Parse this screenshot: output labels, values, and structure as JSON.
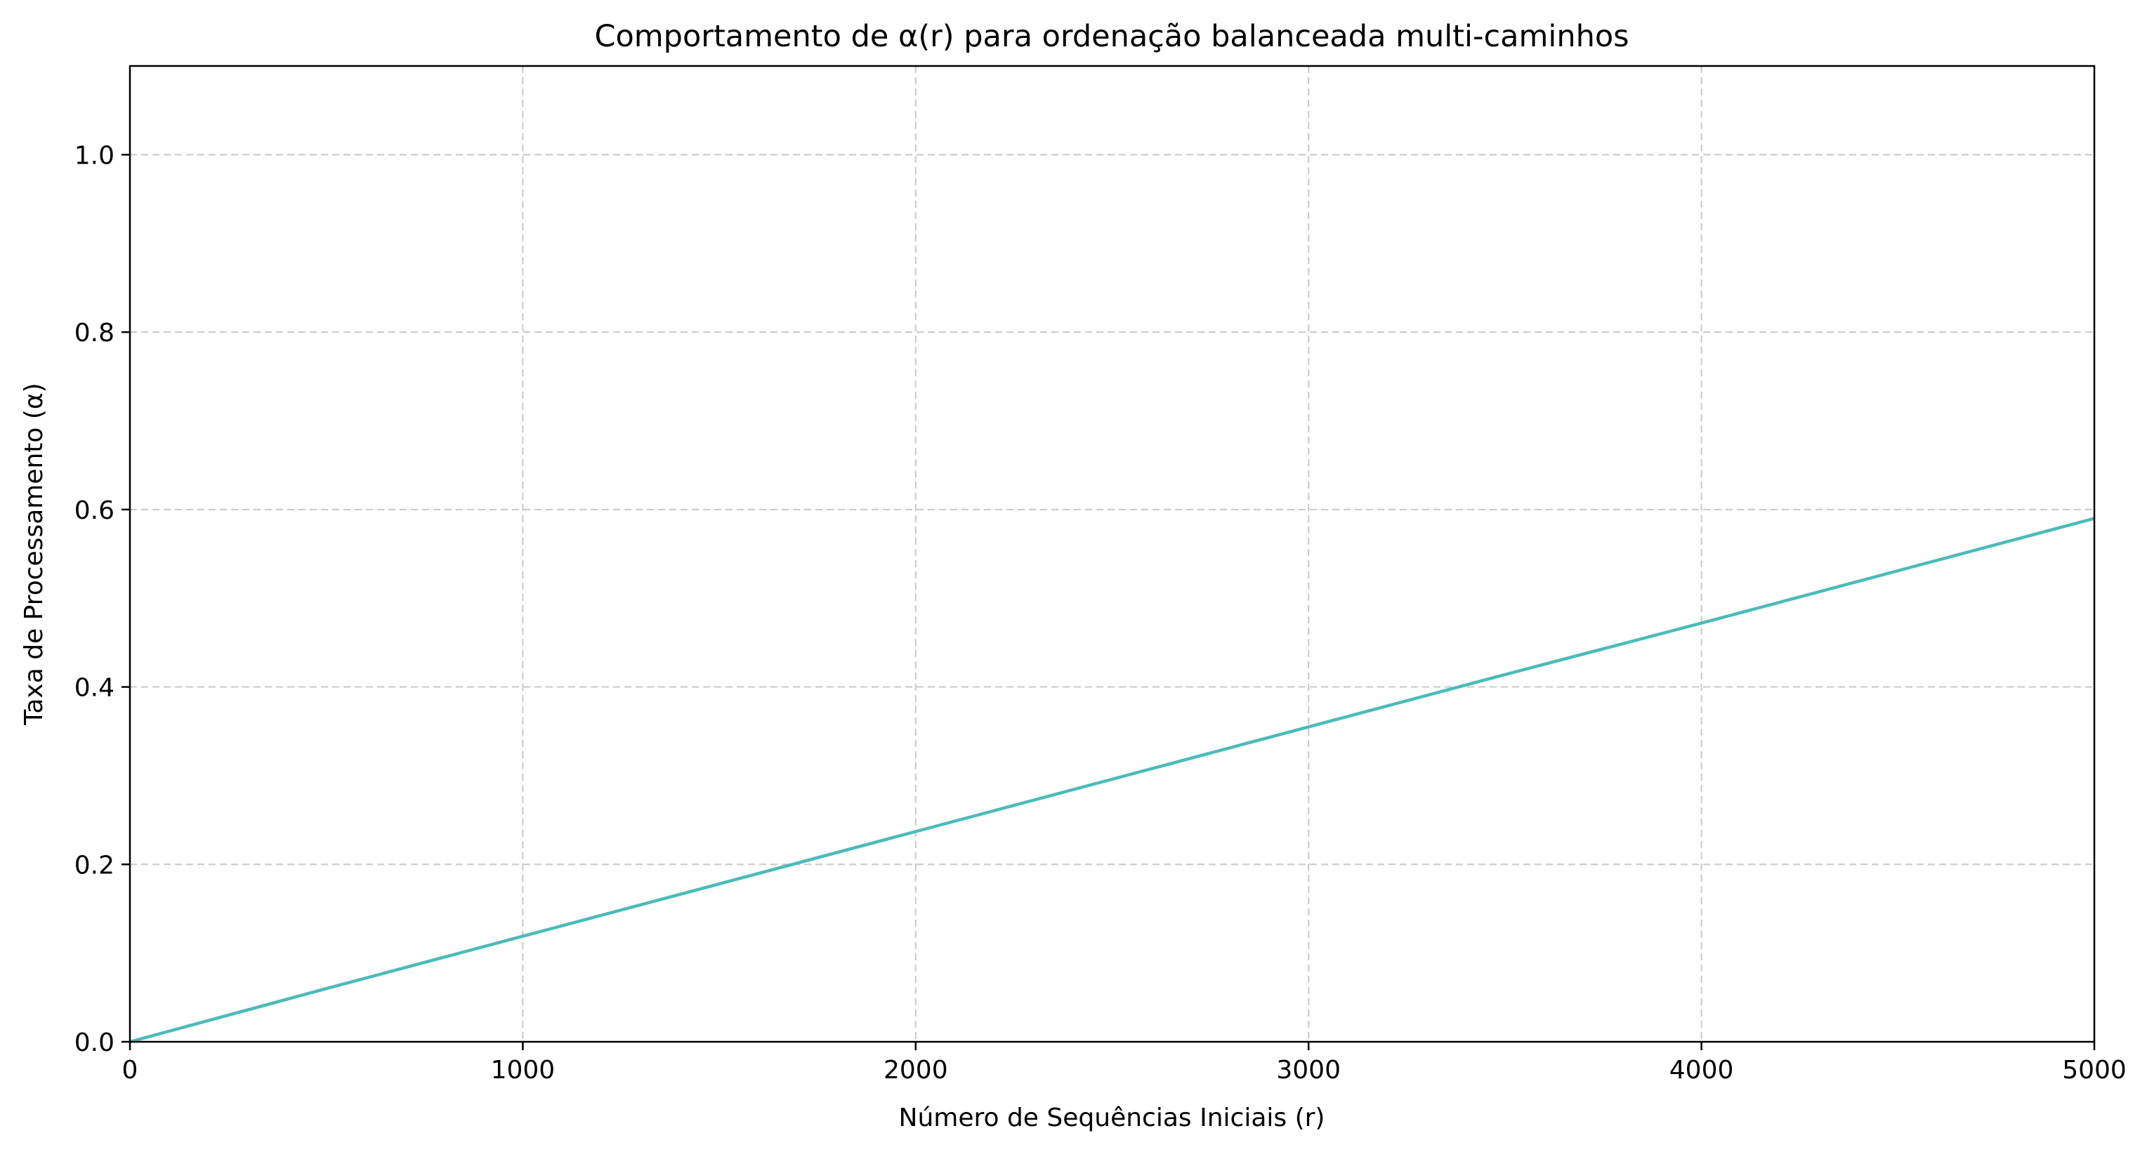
{
  "chart_data": {
    "type": "line",
    "title": "Comportamento de α(r) para ordenação balanceada multi-caminhos",
    "xlabel": "Número de Sequências Iniciais (r)",
    "ylabel": "Taxa de Processamento (α)",
    "xlim": [
      0,
      5000
    ],
    "ylim": [
      0,
      1.1
    ],
    "xticks": [
      0,
      1000,
      2000,
      3000,
      4000,
      5000
    ],
    "xtick_labels": [
      "0",
      "1000",
      "2000",
      "3000",
      "4000",
      "5000"
    ],
    "yticks": [
      0.0,
      0.2,
      0.4,
      0.6,
      0.8,
      1.0
    ],
    "ytick_labels": [
      "0.0",
      "0.2",
      "0.4",
      "0.6",
      "0.8",
      "1.0"
    ],
    "grid": true,
    "series": [
      {
        "color": "#4bbbb8",
        "x": [
          0,
          500,
          1000,
          1500,
          2000,
          2500,
          3000,
          3500,
          4000,
          4500,
          5000
        ],
        "y": [
          0.0,
          0.06,
          0.119,
          0.178,
          0.237,
          0.296,
          0.355,
          0.414,
          0.472,
          0.531,
          0.59
        ]
      }
    ]
  }
}
